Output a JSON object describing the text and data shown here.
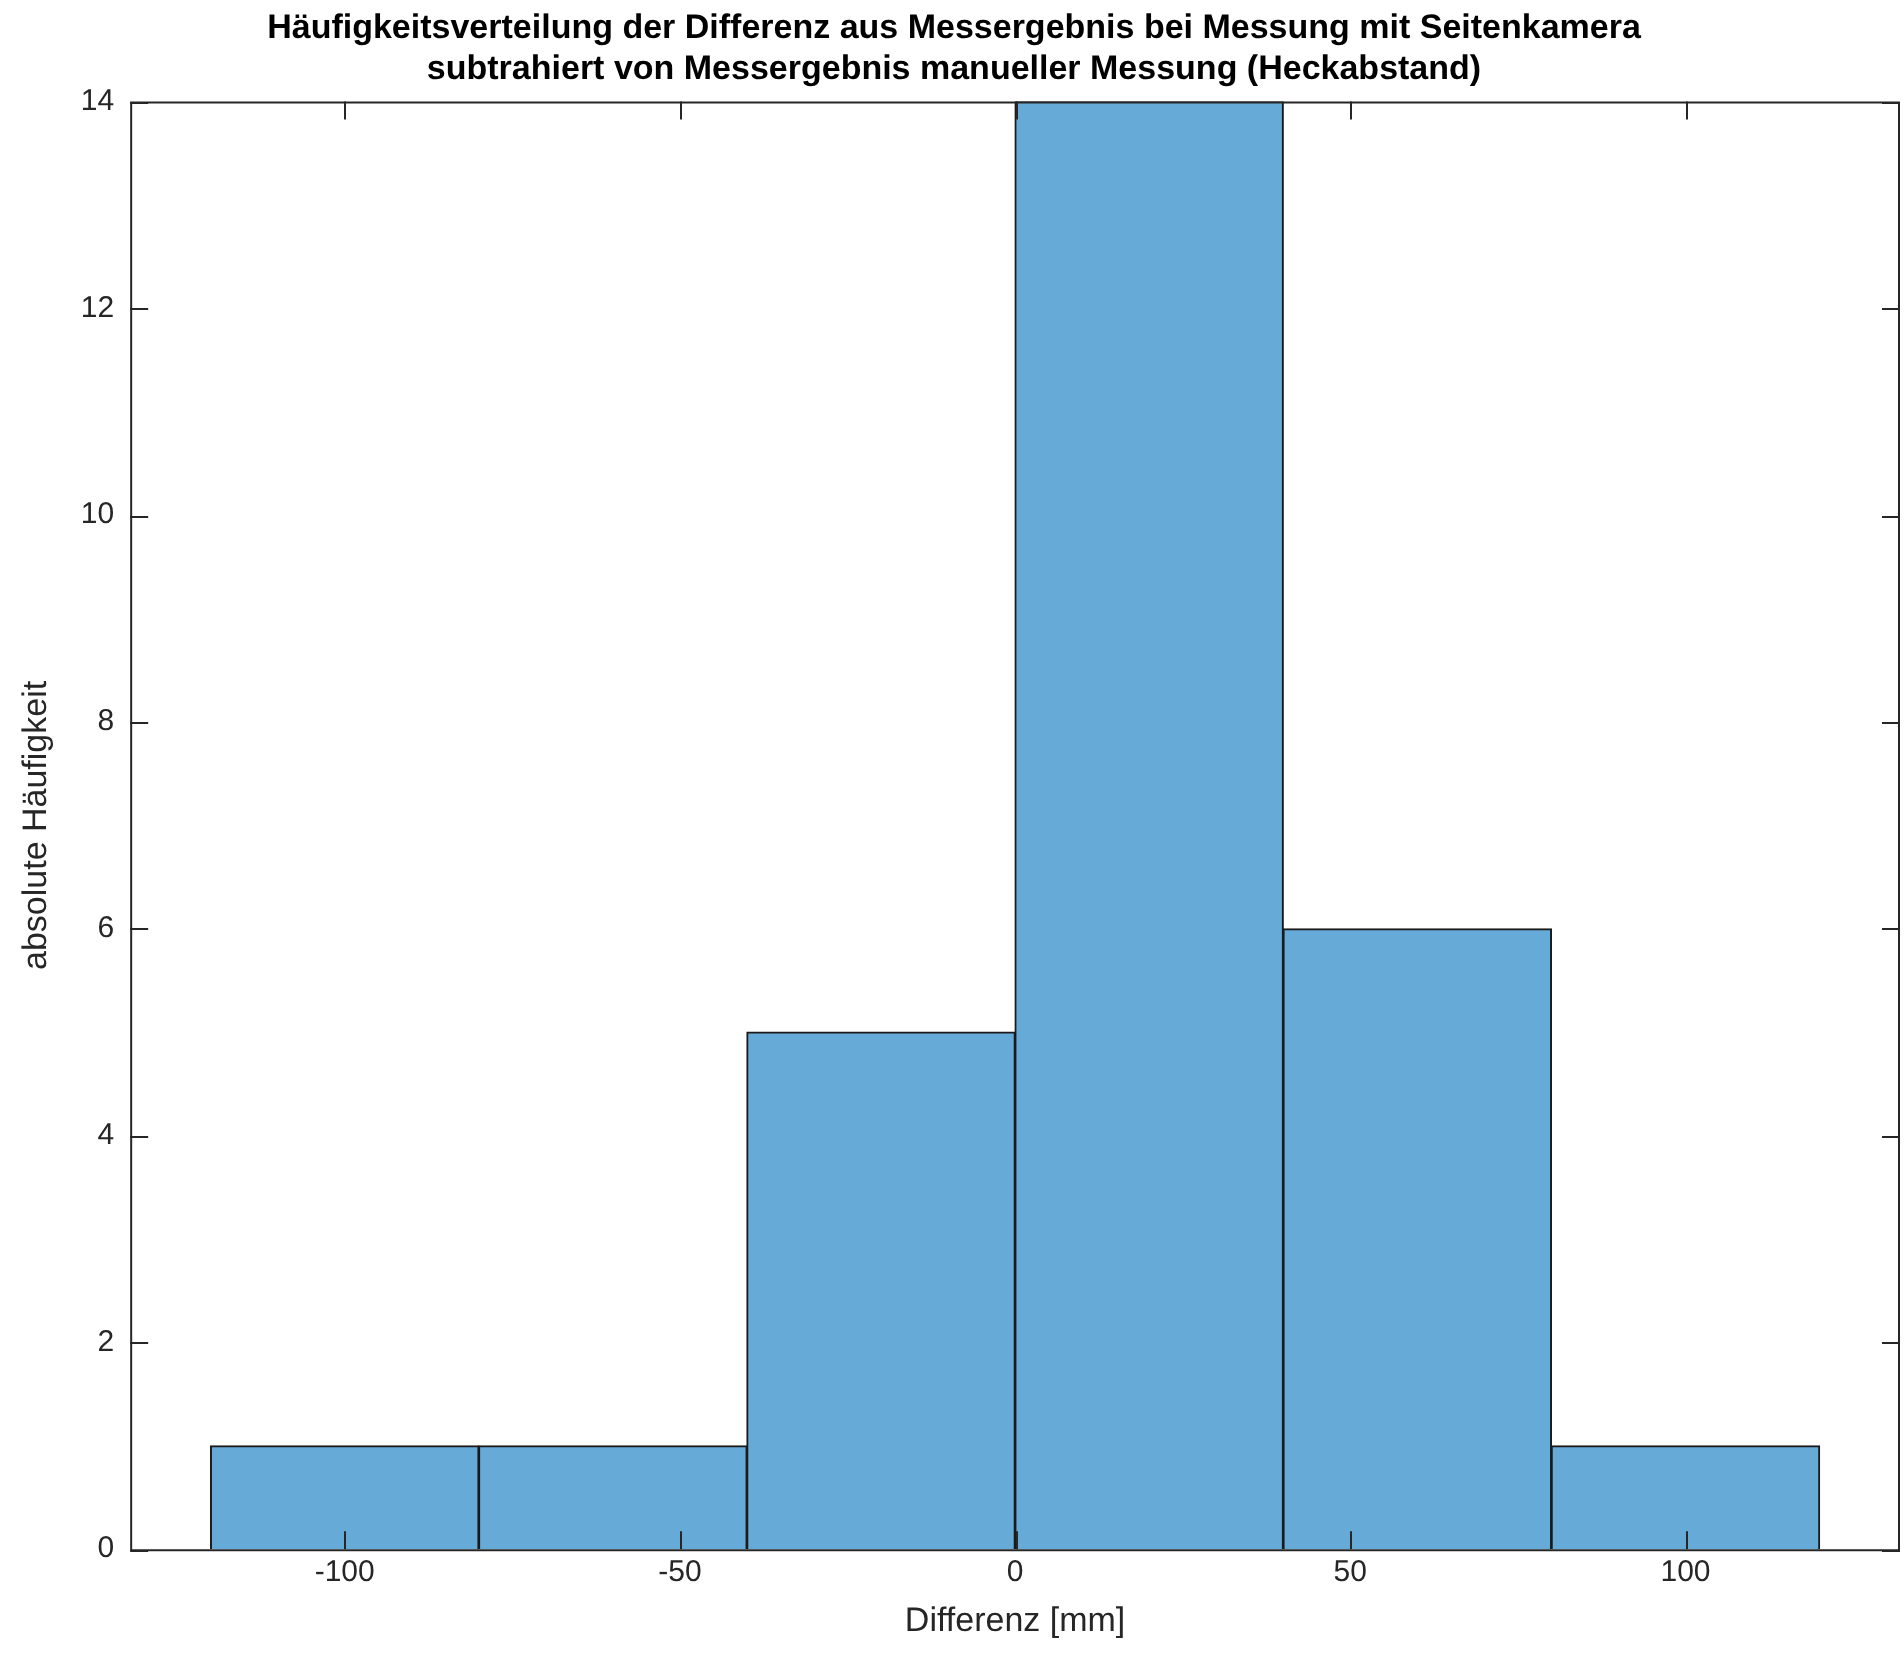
{
  "chart_data": {
    "type": "histogram",
    "title": "Häufigkeitsverteilung der Differenz aus Messergebnis bei Messung mit Seitenkamera\nsubtrahiert von Messergebnis manueller Messung (Heckabstand)",
    "xlabel": "Differenz [mm]",
    "ylabel": "absolute Häufigkeit",
    "bins": [
      -120,
      -80,
      -40,
      0,
      40,
      80,
      120
    ],
    "values": [
      1,
      1,
      5,
      14,
      6,
      1
    ],
    "color": "#66aad7",
    "xlim": [
      -132,
      132
    ],
    "xticks": [
      -100,
      -50,
      0,
      50,
      100
    ],
    "ylim": [
      0,
      14
    ],
    "yticks": [
      0,
      2,
      4,
      6,
      8,
      10,
      12,
      14
    ],
    "grid": false,
    "legend": false
  }
}
